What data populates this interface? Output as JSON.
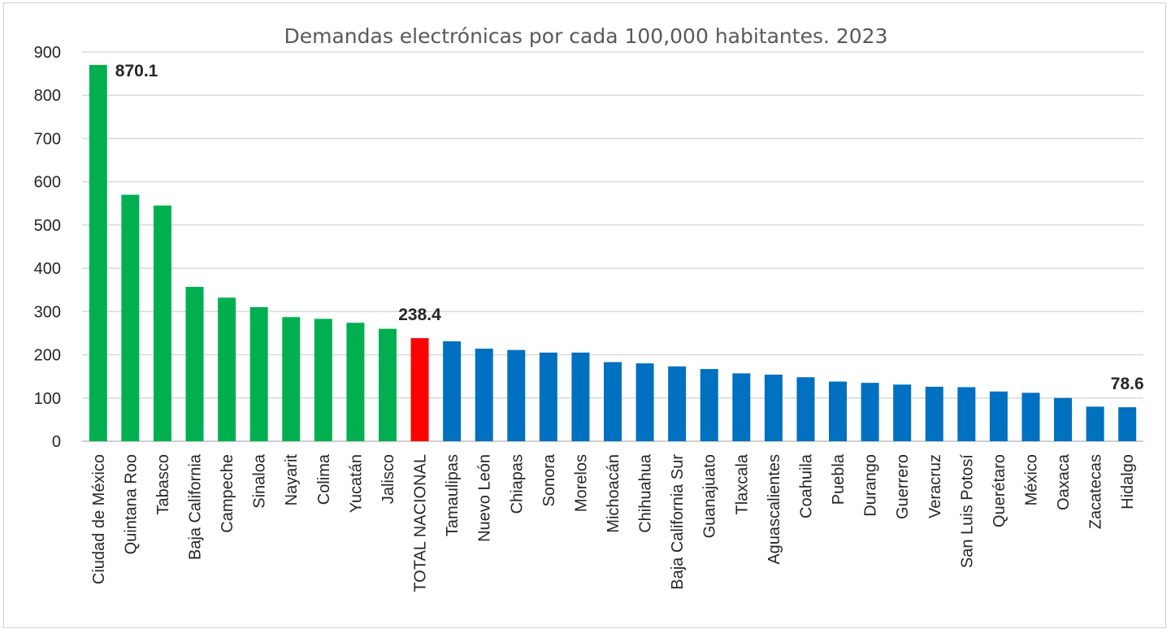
{
  "chart_data": {
    "type": "bar",
    "title": "Demandas electrónicas por cada 100,000 habitantes. 2023",
    "xlabel": "",
    "ylabel": "",
    "ylim": [
      0,
      900
    ],
    "yticks": [
      0,
      100,
      200,
      300,
      400,
      500,
      600,
      700,
      800,
      900
    ],
    "grid": true,
    "legend": "none",
    "colors": {
      "above": "#00b050",
      "total": "#ff0000",
      "below": "#0070c0",
      "grid": "#d9d9d9",
      "text": "#262626",
      "title": "#595959"
    },
    "categories": [
      "Ciudad de México",
      "Quintana Roo",
      "Tabasco",
      "Baja California",
      "Campeche",
      "Sinaloa",
      "Nayarit",
      "Colima",
      "Yucatán",
      "Jalisco",
      "TOTAL NACIONAL",
      "Tamaulipas",
      "Nuevo León",
      "Chiapas",
      "Sonora",
      "Morelos",
      "Michoacán",
      "Chihuahua",
      "Baja California Sur",
      "Guanajuato",
      "Tlaxcala",
      "Aguascalientes",
      "Coahuila",
      "Puebla",
      "Durango",
      "Guerrero",
      "Veracruz",
      "San Luis Potosí",
      "Querétaro",
      "México",
      "Oaxaca",
      "Zacatecas",
      "Hidalgo"
    ],
    "values": [
      870.1,
      570,
      545,
      357,
      332,
      310,
      287,
      283,
      274,
      260,
      238.4,
      231,
      214,
      211,
      205,
      205,
      183,
      180,
      173,
      167,
      157,
      154,
      148,
      138,
      135,
      131,
      126,
      125,
      115,
      112,
      100,
      80,
      78.6
    ],
    "bar_groups": [
      "above",
      "above",
      "above",
      "above",
      "above",
      "above",
      "above",
      "above",
      "above",
      "above",
      "total",
      "below",
      "below",
      "below",
      "below",
      "below",
      "below",
      "below",
      "below",
      "below",
      "below",
      "below",
      "below",
      "below",
      "below",
      "below",
      "below",
      "below",
      "below",
      "below",
      "below",
      "below",
      "below"
    ],
    "annotations": [
      {
        "category": "Ciudad de México",
        "text": "870.1"
      },
      {
        "category": "TOTAL NACIONAL",
        "text": "238.4"
      },
      {
        "category": "Hidalgo",
        "text": "78.6"
      }
    ]
  }
}
